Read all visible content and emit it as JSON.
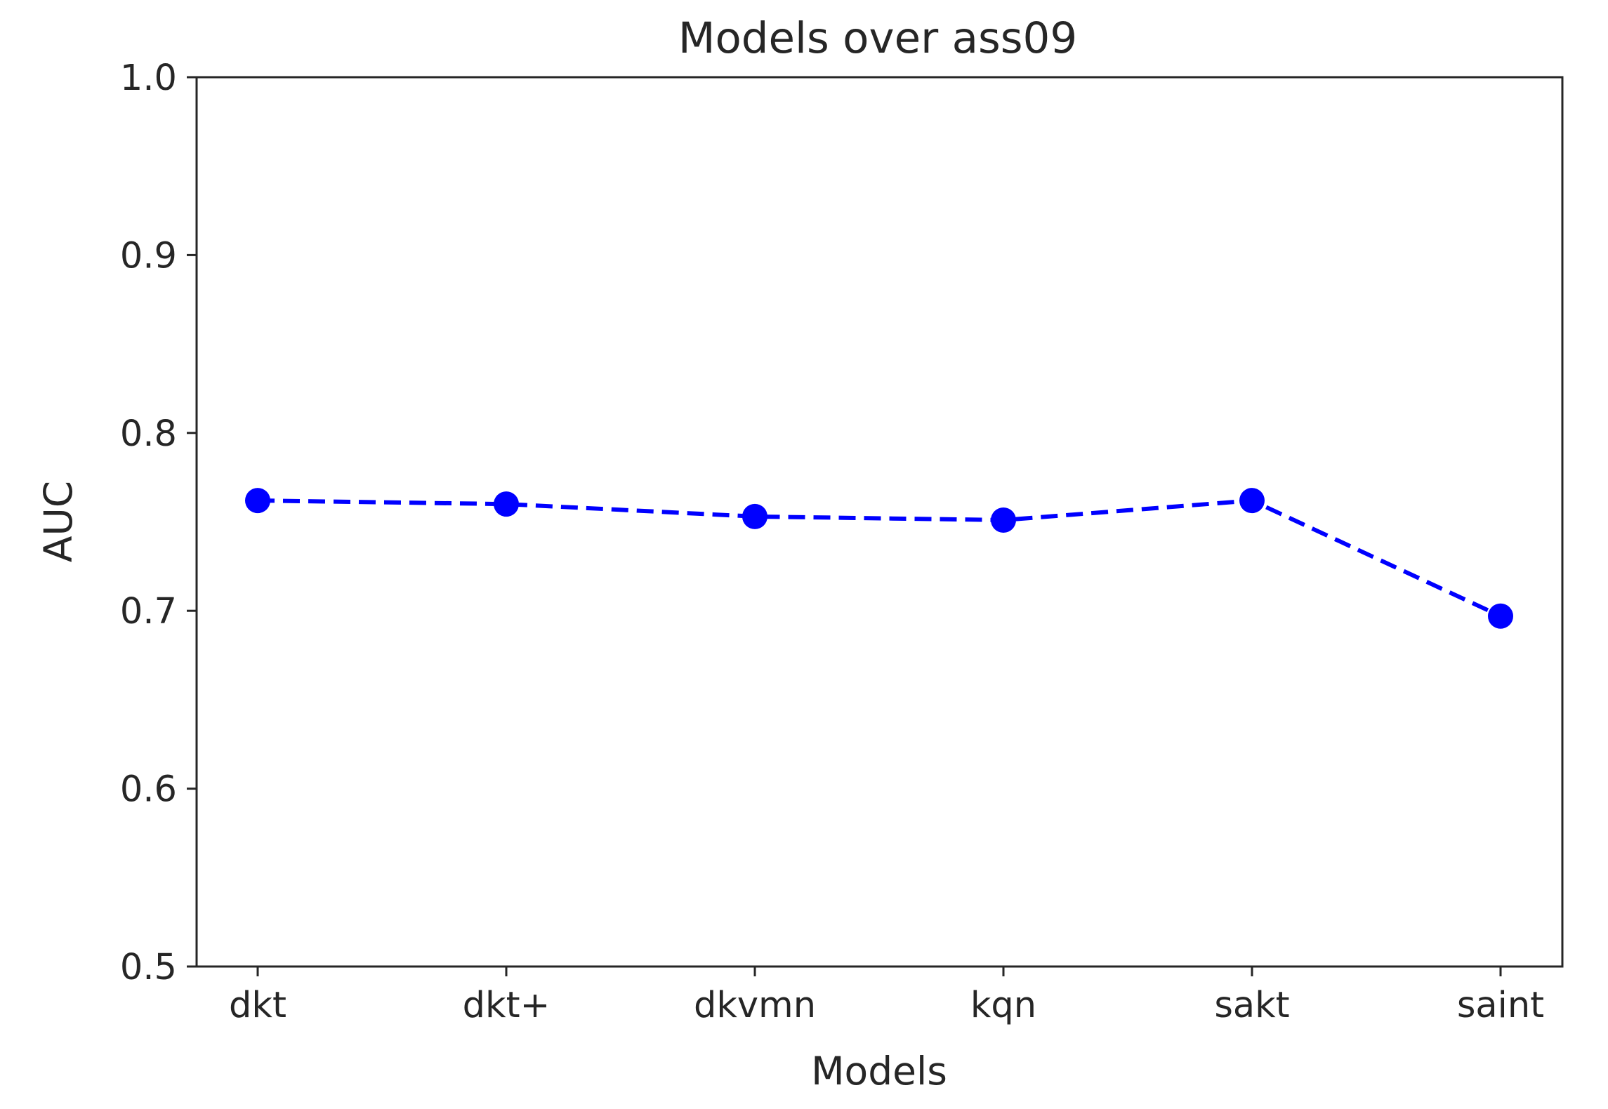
{
  "chart_data": {
    "type": "line",
    "title": "Models over ass09",
    "xlabel": "Models",
    "ylabel": "AUC",
    "categories": [
      "dkt",
      "dkt+",
      "dkvmn",
      "kqn",
      "sakt",
      "saint"
    ],
    "series": [
      {
        "values": [
          0.762,
          0.76,
          0.753,
          0.751,
          0.762,
          0.697
        ],
        "color": "#0000ff",
        "line_style": "dashed",
        "marker": "circle"
      }
    ],
    "ylim": [
      0.5,
      1.0
    ],
    "yticks": [
      0.5,
      0.6,
      0.7,
      0.8,
      0.9,
      1.0
    ],
    "ytick_labels": [
      "0.5",
      "0.6",
      "0.7",
      "0.8",
      "0.9",
      "1.0"
    ],
    "grid": false,
    "legend": false
  }
}
